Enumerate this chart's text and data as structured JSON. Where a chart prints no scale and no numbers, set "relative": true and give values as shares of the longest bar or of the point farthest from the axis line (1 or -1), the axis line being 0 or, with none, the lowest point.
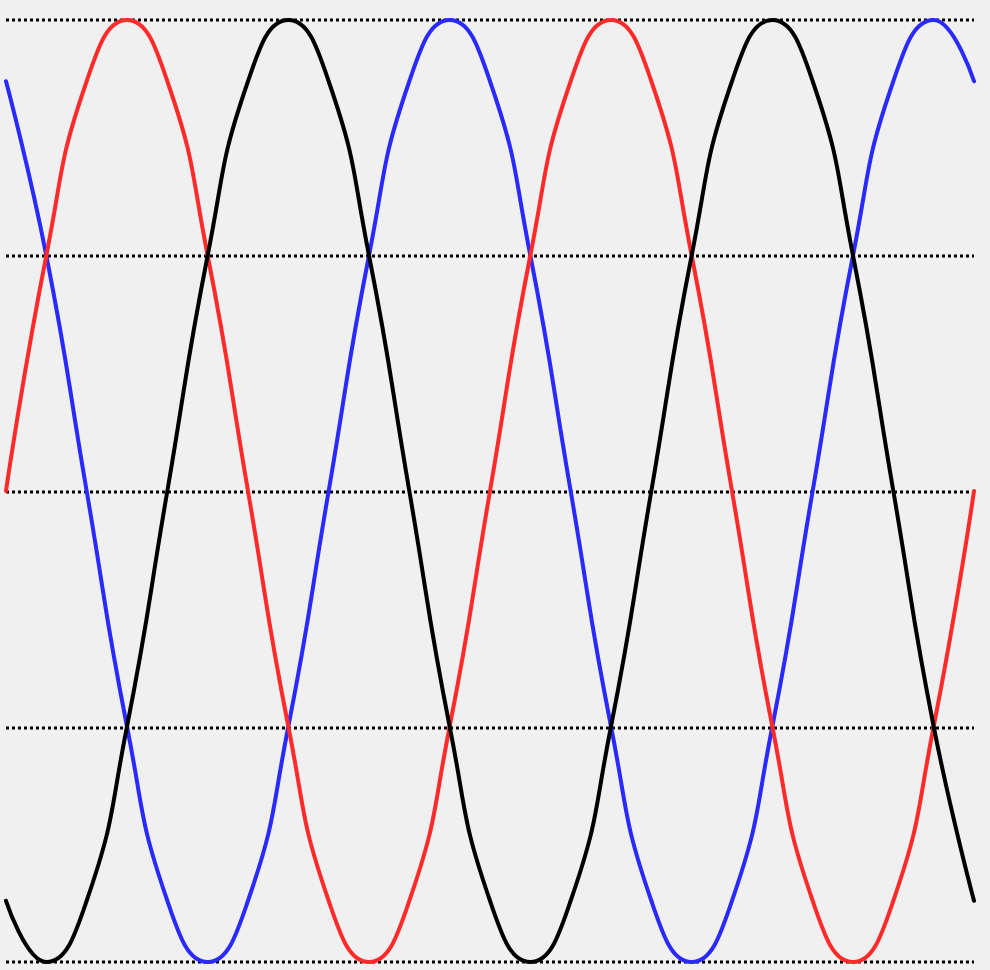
{
  "chart_data": {
    "type": "line",
    "relative": true,
    "grid": "y",
    "marker": "none",
    "line_style": "solid",
    "categories": [
      null,
      null,
      null,
      null,
      null,
      null,
      null,
      null,
      null,
      null,
      null,
      null,
      null,
      null,
      null,
      null,
      null,
      null,
      null,
      null,
      null,
      null,
      null,
      null,
      null
    ],
    "series": [
      {
        "color": "#2a2aff",
        "values": [
          0.87,
          0.5,
          0,
          -0.5,
          -0.87,
          -1,
          -0.87,
          -0.5,
          0,
          0.5,
          0.87,
          1,
          0.87,
          0.5,
          0,
          -0.5,
          -0.87,
          -1,
          -0.87,
          -0.5,
          0,
          0.5,
          0.87,
          1,
          0.87
        ]
      },
      {
        "color": "#ff2a2a",
        "values": [
          0,
          0.5,
          0.87,
          1,
          0.87,
          0.5,
          0,
          -0.5,
          -0.87,
          -1,
          -0.87,
          -0.5,
          0,
          0.5,
          0.87,
          1,
          0.87,
          0.5,
          0,
          -0.5,
          -0.87,
          -1,
          -0.87,
          -0.5,
          0
        ]
      },
      {
        "color": "#000000",
        "values": [
          -0.87,
          -1,
          -0.87,
          -0.5,
          0,
          0.5,
          0.87,
          1,
          0.87,
          0.5,
          0,
          -0.5,
          -0.87,
          -1,
          -0.87,
          -0.5,
          0,
          0.5,
          0.87,
          1,
          0.87,
          0.5,
          0,
          -0.5,
          -0.87
        ]
      }
    ]
  }
}
